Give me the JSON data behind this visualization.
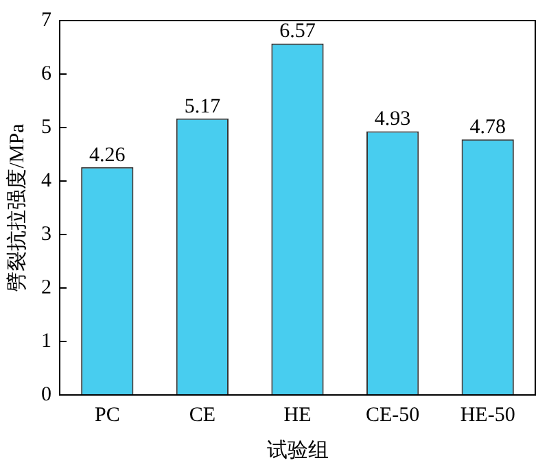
{
  "chart_data": {
    "type": "bar",
    "xlabel": "试验组",
    "ylabel": "劈裂抗拉强度/MPa",
    "categories": [
      "PC",
      "CE",
      "HE",
      "CE-50",
      "HE-50"
    ],
    "values": [
      4.26,
      5.17,
      6.57,
      4.93,
      4.78
    ],
    "color": "#48cdef",
    "ylim": [
      0,
      7
    ],
    "yticks": [
      0,
      1,
      2,
      3,
      4,
      5,
      6,
      7
    ],
    "grid": false,
    "legend": false,
    "data_labels": true
  }
}
